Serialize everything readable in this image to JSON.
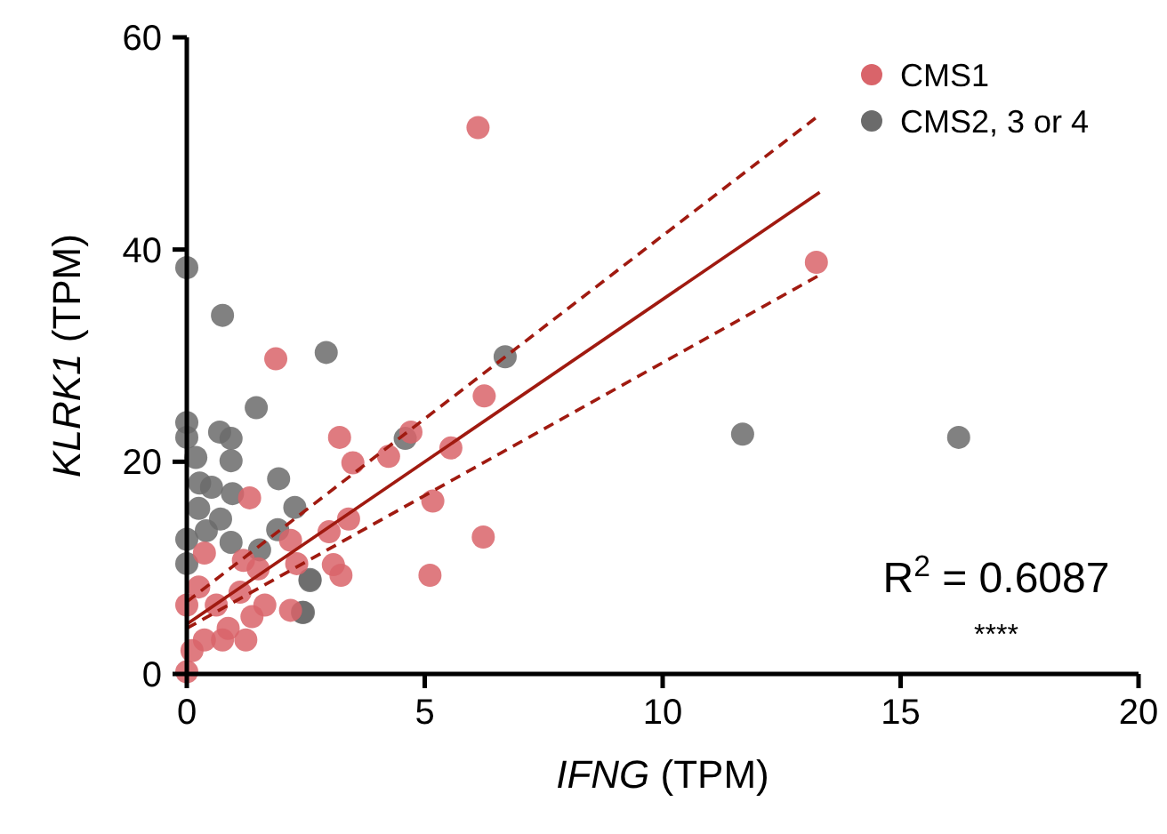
{
  "chart_data": {
    "type": "scatter",
    "xlabel": "IFNG (TPM)",
    "ylabel": "KLRK1 (TPM)",
    "xlim": [
      0,
      20
    ],
    "ylim": [
      0,
      60
    ],
    "xticks": [
      0,
      5,
      10,
      15,
      20
    ],
    "yticks": [
      0,
      20,
      40,
      60
    ],
    "grid": false,
    "legend": "top right",
    "marker": "circle",
    "annotations": [
      "R$^{2}$ = 0.6087",
      "****"
    ],
    "series": [
      {
        "name": "CMS1",
        "color": "#d9646a",
        "x": [
          6.12,
          13.23,
          6.25,
          3.21,
          3.49,
          4.24,
          4.71,
          5.55,
          5.17,
          6.23,
          5.11,
          3.4,
          2.99,
          3.08,
          3.24,
          1.87,
          1.32,
          2.18,
          2.31,
          2.18,
          0.37,
          1.19,
          1.5,
          1.64,
          0,
          0,
          0.25,
          0.62,
          0.87,
          0.37,
          1.12,
          1.37,
          0.11,
          0.75,
          1.24
        ],
        "values": [
          51.5,
          38.8,
          26.2,
          22.3,
          19.9,
          20.5,
          22.8,
          21.3,
          16.3,
          12.9,
          9.3,
          14.6,
          13.4,
          10.3,
          9.3,
          29.7,
          16.6,
          12.6,
          10.4,
          6,
          11.4,
          10.7,
          9.9,
          6.5,
          6.5,
          0.2,
          8.2,
          6.5,
          4.3,
          3.2,
          7.7,
          5.4,
          2.2,
          3.2,
          3.2
        ]
      },
      {
        "name": "CMS2, 3 or 4",
        "color": "#6b6b6b",
        "x": [
          0,
          0.75,
          2.93,
          6.69,
          11.68,
          16.22,
          4.59,
          2.59,
          2.45,
          1.46,
          0,
          0,
          0.69,
          0.93,
          0.19,
          0.93,
          1.93,
          0.27,
          0.52,
          0.96,
          0.25,
          2.27,
          0.71,
          0.41,
          0,
          1.91,
          0.93,
          1.53,
          2.59,
          2.43,
          0
        ],
        "values": [
          38.3,
          33.8,
          30.3,
          29.9,
          22.6,
          22.3,
          22.2,
          8.9,
          5.8,
          25.1,
          23.7,
          22.3,
          22.8,
          22.2,
          20.4,
          20.1,
          18.4,
          18,
          17.6,
          17,
          15.6,
          15.7,
          14.6,
          13.5,
          12.7,
          13.6,
          12.4,
          11.7,
          8.8,
          5.8,
          10.4
        ]
      },
      {
        "type": "line",
        "color": "#a01a10",
        "marker": "none",
        "line_style": "solid",
        "x": [
          0,
          13.3
        ],
        "values": [
          4.7,
          45.4
        ]
      },
      {
        "type": "line",
        "color": "#a01a10",
        "marker": "none",
        "line_style": "dashed",
        "x": [
          0,
          13.3
        ],
        "values": [
          6.8,
          52.7
        ]
      },
      {
        "type": "line",
        "color": "#a01a10",
        "marker": "none",
        "line_style": "dashed",
        "x": [
          0,
          13.3
        ],
        "values": [
          4.3,
          37.6
        ]
      }
    ]
  }
}
